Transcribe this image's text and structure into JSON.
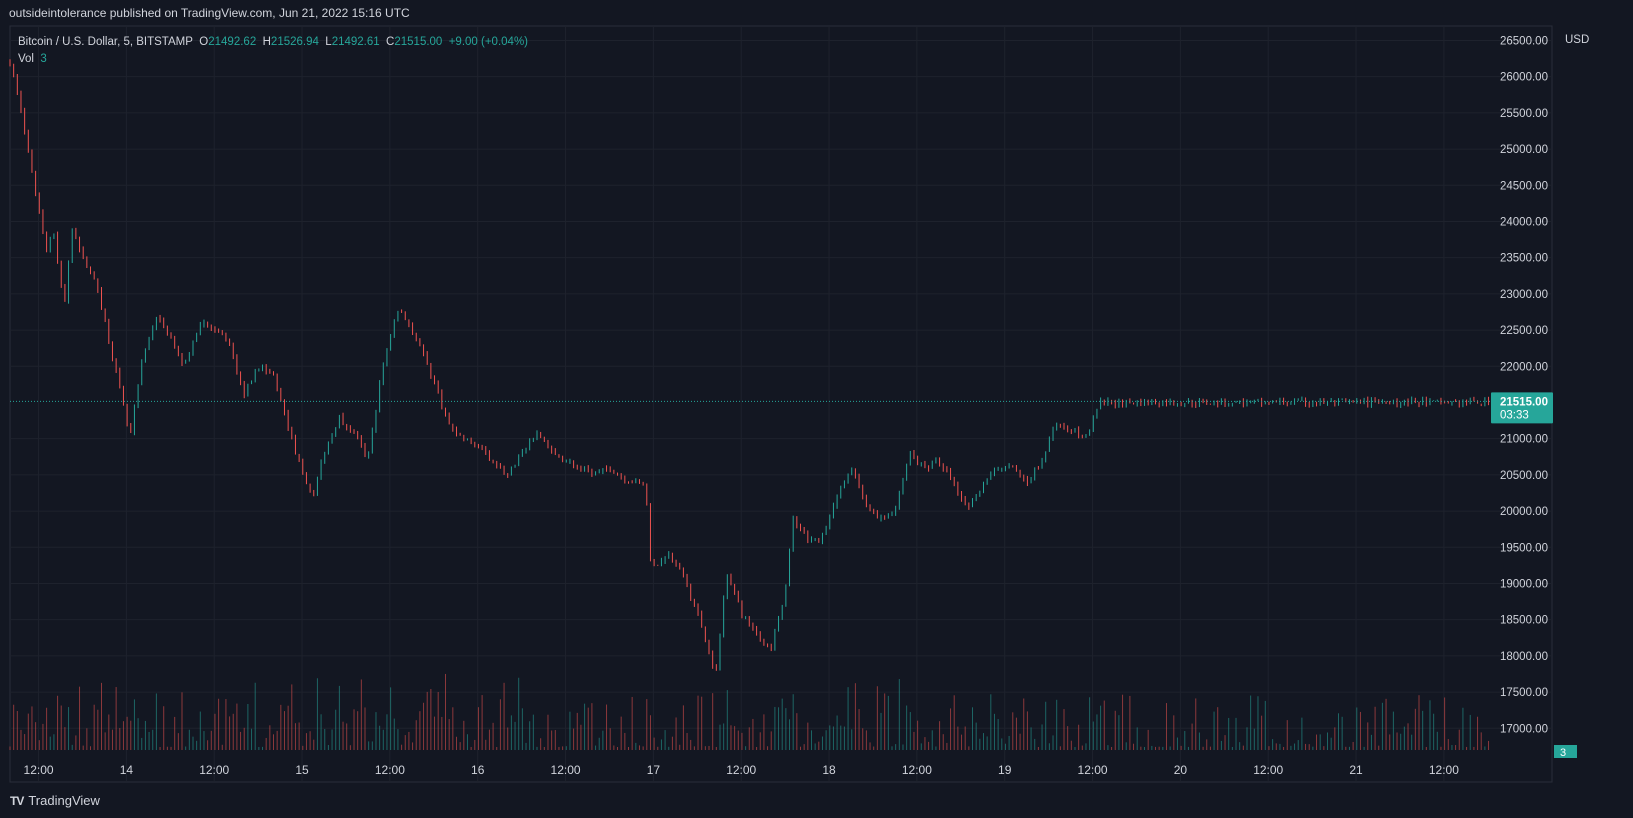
{
  "header": {
    "published": "outsideintolerance published on TradingView.com, Jun 21, 2022 15:16 UTC"
  },
  "legend": {
    "symbol": "Bitcoin / U.S. Dollar, 5, BITSTAMP",
    "o_label": "O",
    "o": "21492.62",
    "h_label": "H",
    "h": "21526.94",
    "l_label": "L",
    "l": "21492.61",
    "c_label": "C",
    "c": "21515.00",
    "change": "+9.00 (+0.04%)",
    "vol_label": "Vol",
    "vol": "3"
  },
  "price_axis": {
    "currency": "USD",
    "last_price": "21515.00",
    "countdown": "03:33",
    "vol_badge": "3"
  },
  "brand": {
    "name": "TradingView",
    "logo_text": "TV"
  },
  "colors": {
    "background": "#131722",
    "up": "#26a69a",
    "down": "#ef5350",
    "grid": "#1e222d",
    "text": "#d1d4dc"
  },
  "chart_data": {
    "type": "candlestick",
    "interval": "5",
    "exchange": "BITSTAMP",
    "ylim": [
      16700,
      26700
    ],
    "y_ticks": [
      26500,
      26000,
      25500,
      25000,
      24500,
      24000,
      23500,
      23000,
      22500,
      22000,
      21000,
      20500,
      20000,
      19500,
      19000,
      18500,
      18000,
      17500,
      17000
    ],
    "y_tick_labels": [
      "26500.00",
      "26000.00",
      "25500.00",
      "25000.00",
      "24500.00",
      "24000.00",
      "23500.00",
      "23000.00",
      "22500.00",
      "22000.00",
      "21000.00",
      "20500.00",
      "20000.00",
      "19500.00",
      "19000.00",
      "18500.00",
      "18000.00",
      "17500.00",
      "17000.00"
    ],
    "x_ticks": [
      "12:00",
      "14",
      "12:00",
      "15",
      "12:00",
      "16",
      "12:00",
      "17",
      "12:00",
      "18",
      "12:00",
      "19",
      "12:00",
      "20",
      "12:00",
      "21",
      "12:00"
    ],
    "x_tick_hours": [
      12,
      24,
      36,
      48,
      60,
      72,
      84,
      96,
      108,
      120,
      132,
      144,
      156,
      168,
      180,
      192,
      204
    ],
    "x_range_hours": [
      8.1,
      210.3
    ],
    "last_price": 21515,
    "price_path": [
      [
        8.1,
        26200
      ],
      [
        9.5,
        25600
      ],
      [
        11,
        24700
      ],
      [
        12,
        24200
      ],
      [
        13,
        23600
      ],
      [
        14,
        23900
      ],
      [
        15.5,
        22800
      ],
      [
        16.5,
        23900
      ],
      [
        18,
        23500
      ],
      [
        20,
        23100
      ],
      [
        22,
        22200
      ],
      [
        24.5,
        21000
      ],
      [
        26,
        22000
      ],
      [
        28,
        22700
      ],
      [
        30,
        22400
      ],
      [
        32,
        22000
      ],
      [
        34,
        22600
      ],
      [
        36,
        22500
      ],
      [
        38,
        22300
      ],
      [
        40,
        21600
      ],
      [
        42,
        22000
      ],
      [
        44,
        21900
      ],
      [
        46,
        21200
      ],
      [
        48,
        20500
      ],
      [
        49.5,
        20200
      ],
      [
        51,
        20800
      ],
      [
        53,
        21300
      ],
      [
        55,
        21100
      ],
      [
        57,
        20700
      ],
      [
        59,
        22000
      ],
      [
        61,
        22800
      ],
      [
        62.5,
        22600
      ],
      [
        64,
        22300
      ],
      [
        66,
        21800
      ],
      [
        68,
        21200
      ],
      [
        70,
        21000
      ],
      [
        72,
        20900
      ],
      [
        74,
        20700
      ],
      [
        76,
        20500
      ],
      [
        78,
        20800
      ],
      [
        80,
        21100
      ],
      [
        82,
        20800
      ],
      [
        84,
        20700
      ],
      [
        86,
        20600
      ],
      [
        88,
        20500
      ],
      [
        90,
        20600
      ],
      [
        92,
        20450
      ],
      [
        94,
        20380
      ],
      [
        95,
        20350
      ],
      [
        95.3,
        19500
      ],
      [
        96,
        19200
      ],
      [
        98,
        19400
      ],
      [
        100,
        19100
      ],
      [
        102,
        18600
      ],
      [
        104.5,
        17700
      ],
      [
        106,
        19200
      ],
      [
        108,
        18600
      ],
      [
        110,
        18300
      ],
      [
        112,
        18100
      ],
      [
        114,
        18900
      ],
      [
        115,
        19900
      ],
      [
        117,
        19600
      ],
      [
        119,
        19600
      ],
      [
        121,
        20200
      ],
      [
        123,
        20600
      ],
      [
        125,
        20100
      ],
      [
        127,
        19900
      ],
      [
        129,
        20000
      ],
      [
        131,
        20800
      ],
      [
        133,
        20600
      ],
      [
        135,
        20700
      ],
      [
        137,
        20400
      ],
      [
        139,
        20000
      ],
      [
        141,
        20400
      ],
      [
        143,
        20600
      ],
      [
        145,
        20600
      ],
      [
        147,
        20400
      ],
      [
        149,
        20700
      ],
      [
        151,
        21200
      ],
      [
        153,
        21150
      ],
      [
        155,
        21000
      ],
      [
        157,
        21500
      ]
    ]
  }
}
